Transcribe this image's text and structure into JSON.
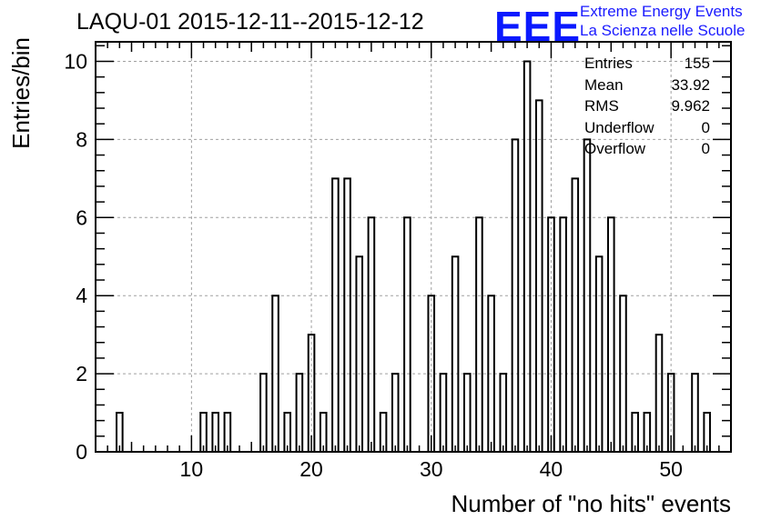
{
  "header": {
    "title": "LAQU-01 2015-12-11--2015-12-12",
    "logo_text": "EEE",
    "logo_line1": "Extreme Energy Events",
    "logo_line2": "La Scienza nelle Scuole"
  },
  "stats": [
    {
      "label": "Entries",
      "value": "155"
    },
    {
      "label": "Mean",
      "value": "33.92"
    },
    {
      "label": "RMS",
      "value": "9.962"
    },
    {
      "label": "Underflow",
      "value": "0"
    },
    {
      "label": "Overflow",
      "value": "0"
    }
  ],
  "colors": {
    "line": "#000000",
    "grid": "#a0a0a0",
    "logo": "#0a19ff"
  },
  "chart_data": {
    "type": "histogram",
    "title": "LAQU-01 2015-12-11--2015-12-12",
    "xlabel": "Number of \"no hits\" events",
    "ylabel": "Entries/bin",
    "xlim": [
      2,
      55
    ],
    "ylim": [
      0,
      10.5
    ],
    "xticks": [
      10,
      20,
      30,
      40,
      50
    ],
    "yticks": [
      0,
      2,
      4,
      6,
      8,
      10
    ],
    "bin_width": 0.5,
    "grid": true,
    "bins": [
      {
        "x": 4,
        "count": 1
      },
      {
        "x": 11,
        "count": 1
      },
      {
        "x": 12,
        "count": 1
      },
      {
        "x": 13,
        "count": 1
      },
      {
        "x": 16,
        "count": 2
      },
      {
        "x": 17,
        "count": 4
      },
      {
        "x": 18,
        "count": 1
      },
      {
        "x": 19,
        "count": 2
      },
      {
        "x": 20,
        "count": 3
      },
      {
        "x": 21,
        "count": 1
      },
      {
        "x": 22,
        "count": 7
      },
      {
        "x": 23,
        "count": 7
      },
      {
        "x": 24,
        "count": 5
      },
      {
        "x": 25,
        "count": 6
      },
      {
        "x": 26,
        "count": 1
      },
      {
        "x": 27,
        "count": 2
      },
      {
        "x": 28,
        "count": 6
      },
      {
        "x": 30,
        "count": 4
      },
      {
        "x": 31,
        "count": 2
      },
      {
        "x": 32,
        "count": 5
      },
      {
        "x": 33,
        "count": 2
      },
      {
        "x": 34,
        "count": 6
      },
      {
        "x": 35,
        "count": 4
      },
      {
        "x": 36,
        "count": 2
      },
      {
        "x": 37,
        "count": 8
      },
      {
        "x": 38,
        "count": 10
      },
      {
        "x": 39,
        "count": 9
      },
      {
        "x": 40,
        "count": 6
      },
      {
        "x": 41,
        "count": 6
      },
      {
        "x": 42,
        "count": 7
      },
      {
        "x": 43,
        "count": 8
      },
      {
        "x": 44,
        "count": 5
      },
      {
        "x": 45,
        "count": 6
      },
      {
        "x": 46,
        "count": 4
      },
      {
        "x": 47,
        "count": 1
      },
      {
        "x": 48,
        "count": 1
      },
      {
        "x": 49,
        "count": 3
      },
      {
        "x": 50,
        "count": 2
      },
      {
        "x": 52,
        "count": 2
      },
      {
        "x": 53,
        "count": 1
      }
    ]
  }
}
